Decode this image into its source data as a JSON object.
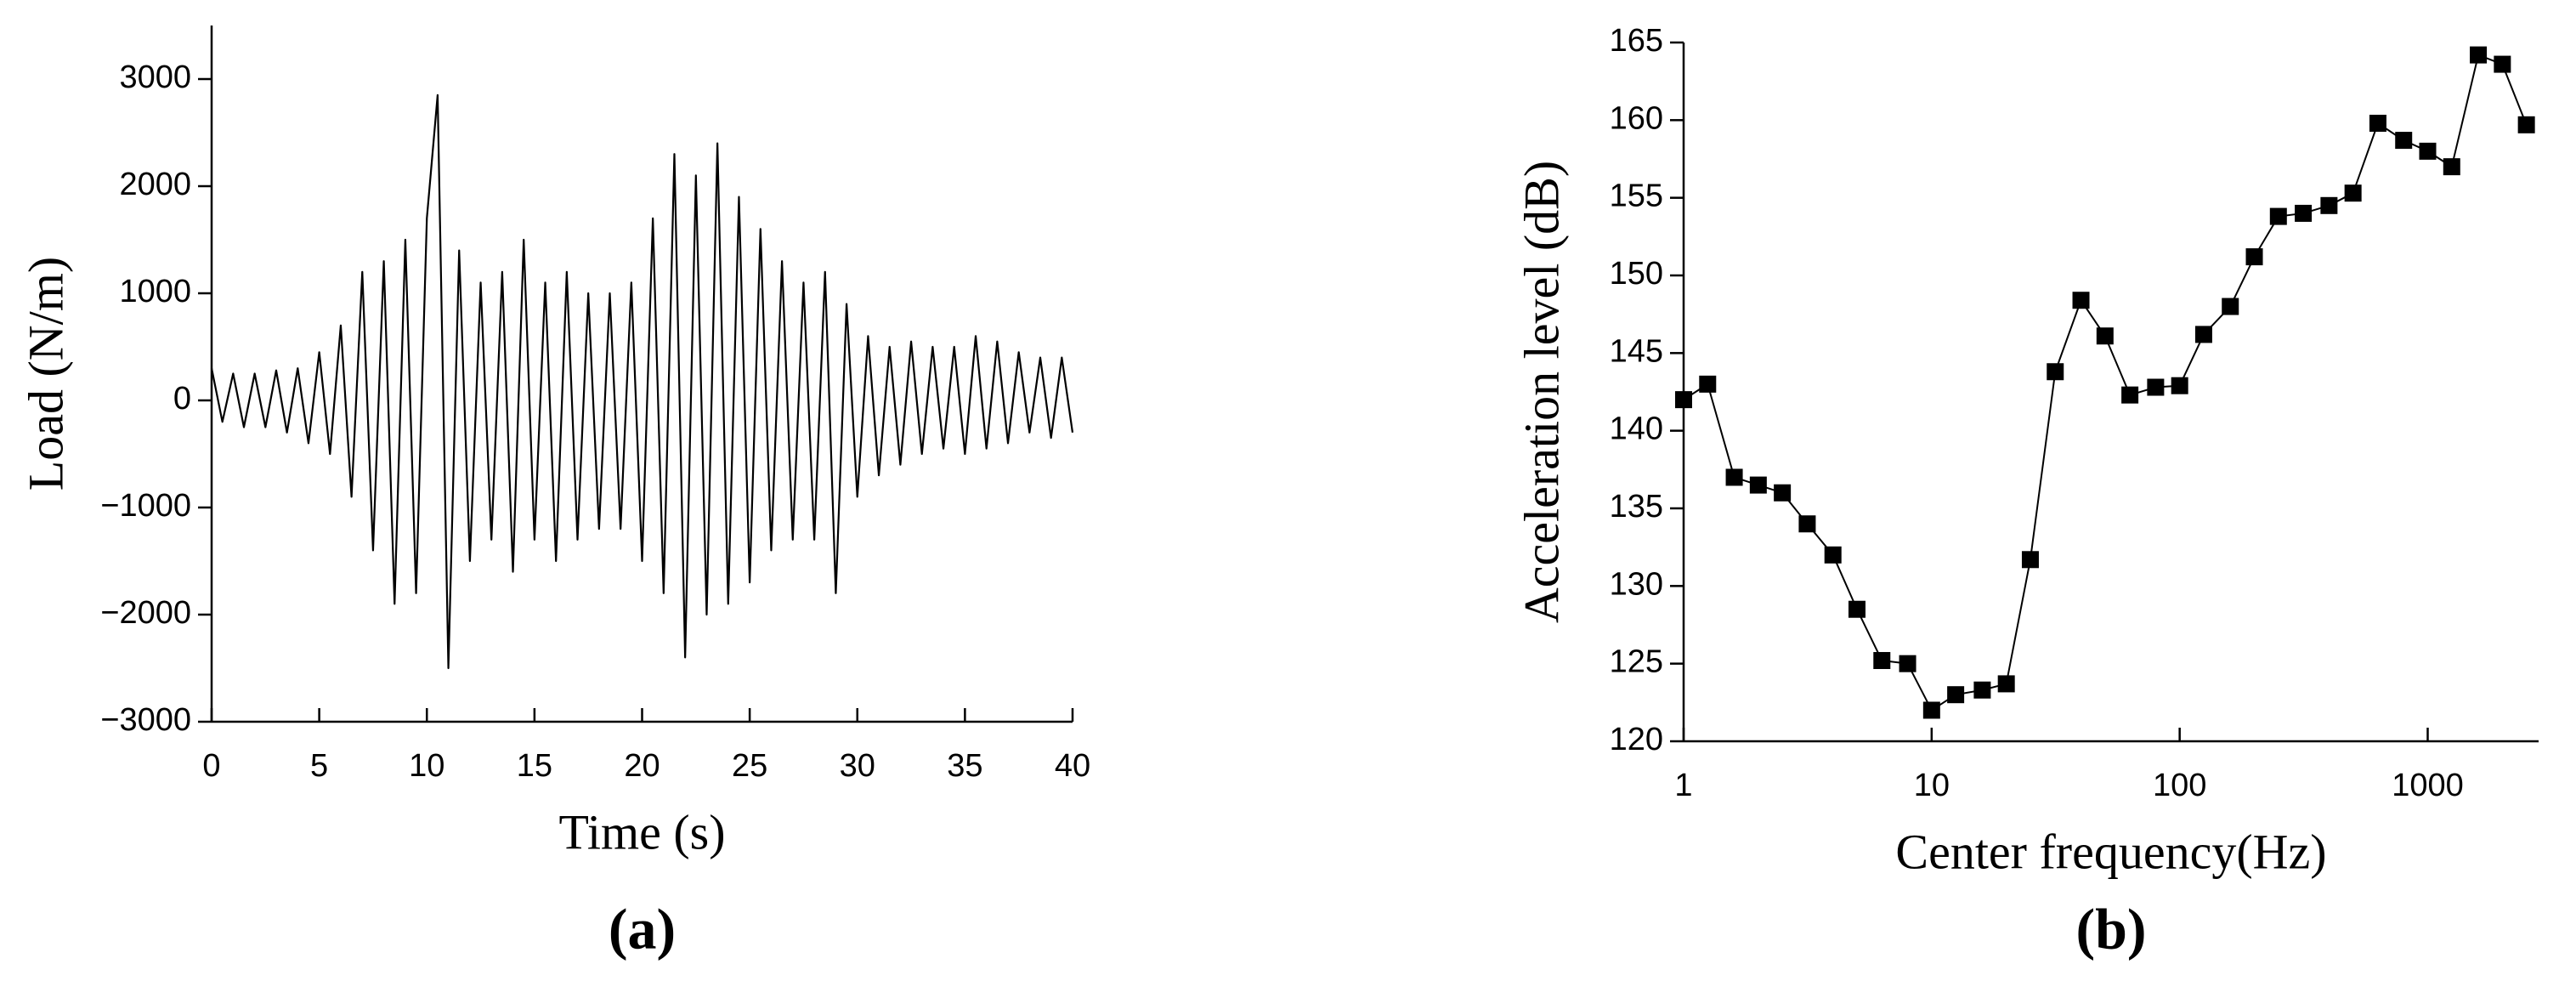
{
  "chart_data": [
    {
      "type": "line",
      "panel_label": "(a)",
      "x_label": "Time (s)",
      "y_label": "Load (N/m)",
      "color": "#000000",
      "x": [
        0,
        0.5,
        1,
        1.5,
        2,
        2.5,
        3,
        3.5,
        4,
        4.5,
        5,
        5.5,
        6,
        6.5,
        7,
        7.5,
        8,
        8.5,
        9,
        9.5,
        10,
        10.5,
        11,
        11.5,
        12,
        12.5,
        13,
        13.5,
        14,
        14.5,
        15,
        15.5,
        16,
        16.5,
        17,
        17.5,
        18,
        18.5,
        19,
        19.5,
        20,
        20.5,
        21,
        21.5,
        22,
        22.5,
        23,
        23.5,
        24,
        24.5,
        25,
        25.5,
        26,
        26.5,
        27,
        27.5,
        28,
        28.5,
        29,
        29.5,
        30,
        30.5,
        31,
        31.5,
        32,
        32.5,
        33,
        33.5,
        34,
        34.5,
        35,
        35.5,
        36,
        36.5,
        37,
        37.5,
        38,
        38.5,
        39,
        39.5,
        40
      ],
      "values": [
        300,
        -200,
        250,
        -250,
        250,
        -250,
        280,
        -300,
        300,
        -400,
        450,
        -500,
        700,
        -900,
        1200,
        -1400,
        1300,
        -1900,
        1500,
        -1800,
        1700,
        2850,
        -2500,
        1400,
        -1500,
        1100,
        -1300,
        1200,
        -1600,
        1500,
        -1300,
        1100,
        -1500,
        1200,
        -1300,
        1000,
        -1200,
        1000,
        -1200,
        1100,
        -1500,
        1700,
        -1800,
        2300,
        -2400,
        2100,
        -2000,
        2400,
        -1900,
        1900,
        -1700,
        1600,
        -1400,
        1300,
        -1300,
        1100,
        -1300,
        1200,
        -1800,
        900,
        -900,
        600,
        -700,
        500,
        -600,
        550,
        -500,
        500,
        -450,
        500,
        -500,
        600,
        -450,
        550,
        -400,
        450,
        -300,
        400,
        -350,
        400,
        -300
      ],
      "xlim": [
        0,
        40
      ],
      "xticks": [
        0,
        5,
        10,
        15,
        20,
        25,
        30,
        35,
        40
      ],
      "ylim": [
        -3000,
        3500
      ],
      "yticks": [
        {
          "value": -3000,
          "label": "−3000"
        },
        {
          "value": -2000,
          "label": "−2000"
        },
        {
          "value": -1000,
          "label": "−1000"
        },
        0,
        1000,
        2000,
        3000
      ],
      "log_x": false,
      "markers": false
    },
    {
      "type": "line",
      "panel_label": "(b)",
      "x_label": "Center frequency(Hz)",
      "y_label": "Acceleration level (dB)",
      "color": "#000000",
      "x": [
        1,
        1.25,
        1.6,
        2,
        2.5,
        3.15,
        4,
        5,
        6.3,
        8,
        10,
        12.5,
        16,
        20,
        25,
        31.5,
        40,
        50,
        63,
        80,
        100,
        125,
        160,
        200,
        250,
        315,
        400,
        500,
        630,
        800,
        1000,
        1250,
        1600,
        2000,
        2500
      ],
      "values": [
        142,
        143,
        137,
        136.5,
        136,
        134,
        132,
        128.5,
        125.2,
        125,
        122,
        123,
        123.3,
        123.7,
        131.7,
        143.8,
        148.4,
        146.1,
        142.3,
        142.8,
        142.9,
        146.2,
        148,
        151.2,
        153.8,
        154,
        154.5,
        155.3,
        159.8,
        158.7,
        158,
        157,
        164.2,
        163.6,
        159.7
      ],
      "xlim": [
        1,
        2800
      ],
      "xticks": [
        1,
        10,
        100,
        1000
      ],
      "ylim": [
        120,
        165
      ],
      "yticks": [
        120,
        125,
        130,
        135,
        140,
        145,
        150,
        155,
        160,
        165
      ],
      "log_x": true,
      "markers": true
    }
  ]
}
